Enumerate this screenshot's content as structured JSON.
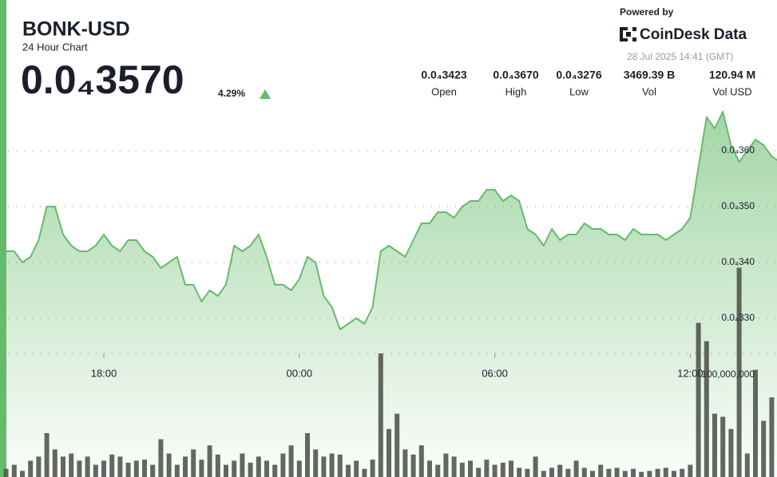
{
  "chart_data": {
    "type": "area",
    "title": "BONK-USD",
    "subtitle": "24 Hour Chart",
    "price": "0.0₄3570",
    "change": "4.29%",
    "powered_by": "Powered by",
    "brand": "CoinDesk Data",
    "timestamp": "28 Jul 2025 14:41 (GMT)",
    "stats": [
      {
        "value": "0.0₄3423",
        "label": "Open"
      },
      {
        "value": "0.0₄3670",
        "label": "High"
      },
      {
        "value": "0.0₄3276",
        "label": "Low"
      },
      {
        "value": "3469.39 B",
        "label": "Vol"
      },
      {
        "value": "120.94 M",
        "label": "Vol USD"
      }
    ],
    "categories": [
      null,
      null,
      null,
      null,
      null,
      null,
      null,
      null,
      null,
      null,
      null,
      null,
      "18:00",
      null,
      null,
      null,
      null,
      null,
      null,
      null,
      null,
      null,
      null,
      null,
      null,
      null,
      null,
      null,
      null,
      null,
      null,
      null,
      null,
      null,
      null,
      null,
      "00:00",
      null,
      null,
      null,
      null,
      null,
      null,
      null,
      null,
      null,
      null,
      null,
      null,
      null,
      null,
      null,
      null,
      null,
      null,
      null,
      null,
      null,
      null,
      null,
      "06:00",
      null,
      null,
      null,
      null,
      null,
      null,
      null,
      null,
      null,
      null,
      null,
      null,
      null,
      null,
      null,
      null,
      null,
      null,
      null,
      null,
      null,
      null,
      null,
      "12:00",
      null,
      null,
      null,
      null,
      null,
      null,
      null,
      null,
      null,
      null,
      null
    ],
    "series": [
      {
        "type": "area",
        "color": "#66bb6a",
        "values": [
          3.42e-05,
          3.42e-05,
          3.4e-05,
          3.41e-05,
          3.44e-05,
          3.5e-05,
          3.5e-05,
          3.45e-05,
          3.43e-05,
          3.42e-05,
          3.42e-05,
          3.43e-05,
          3.45e-05,
          3.43e-05,
          3.42e-05,
          3.44e-05,
          3.44e-05,
          3.42e-05,
          3.41e-05,
          3.39e-05,
          3.4e-05,
          3.41e-05,
          3.36e-05,
          3.36e-05,
          3.33e-05,
          3.35e-05,
          3.34e-05,
          3.36e-05,
          3.43e-05,
          3.42e-05,
          3.43e-05,
          3.45e-05,
          3.41e-05,
          3.36e-05,
          3.36e-05,
          3.35e-05,
          3.37e-05,
          3.41e-05,
          3.4e-05,
          3.34e-05,
          3.32e-05,
          3.28e-05,
          3.29e-05,
          3.3e-05,
          3.29e-05,
          3.32e-05,
          3.42e-05,
          3.43e-05,
          3.42e-05,
          3.41e-05,
          3.44e-05,
          3.47e-05,
          3.47e-05,
          3.49e-05,
          3.49e-05,
          3.48e-05,
          3.5e-05,
          3.51e-05,
          3.51e-05,
          3.53e-05,
          3.53e-05,
          3.51e-05,
          3.52e-05,
          3.51e-05,
          3.46e-05,
          3.45e-05,
          3.43e-05,
          3.46e-05,
          3.44e-05,
          3.45e-05,
          3.45e-05,
          3.47e-05,
          3.46e-05,
          3.46e-05,
          3.45e-05,
          3.45e-05,
          3.44e-05,
          3.46e-05,
          3.45e-05,
          3.45e-05,
          3.45e-05,
          3.44e-05,
          3.45e-05,
          3.46e-05,
          3.48e-05,
          3.57e-05,
          3.66e-05,
          3.64e-05,
          3.67e-05,
          3.61e-05,
          3.58e-05,
          3.6e-05,
          3.62e-05,
          3.61e-05,
          3.59e-05,
          3.58e-05
        ]
      },
      {
        "type": "bar",
        "axis": "y2",
        "color": "#4d524b",
        "values": [
          8000000,
          12000000,
          6000000,
          16000000,
          20000000,
          43000000,
          27000000,
          20000000,
          23000000,
          16000000,
          20000000,
          12000000,
          16000000,
          22000000,
          20000000,
          14000000,
          16000000,
          17000000,
          12000000,
          37000000,
          23000000,
          12000000,
          20000000,
          27000000,
          17000000,
          31000000,
          22000000,
          12000000,
          16000000,
          23000000,
          14000000,
          20000000,
          16000000,
          12000000,
          23000000,
          31000000,
          16000000,
          43000000,
          27000000,
          20000000,
          23000000,
          22000000,
          12000000,
          16000000,
          8000000,
          17000000,
          121000000,
          47000000,
          62000000,
          27000000,
          22000000,
          31000000,
          16000000,
          12000000,
          23000000,
          20000000,
          14000000,
          16000000,
          9000000,
          17000000,
          12000000,
          14000000,
          16000000,
          9000000,
          8000000,
          20000000,
          6000000,
          9000000,
          12000000,
          8000000,
          16000000,
          9000000,
          6000000,
          12000000,
          8000000,
          9000000,
          6000000,
          8000000,
          5000000,
          6000000,
          8000000,
          9000000,
          6000000,
          8000000,
          12000000,
          151000000,
          133000000,
          62000000,
          59000000,
          47000000,
          205000000,
          23000000,
          105000000,
          55000000,
          78000000,
          8000000
        ]
      }
    ],
    "ylim": [
      3.02e-05,
      3.7e-05
    ],
    "yticks": [
      {
        "value": 3.3e-05,
        "label": "0.0₄330"
      },
      {
        "value": 3.4e-05,
        "label": "0.0₄340"
      },
      {
        "value": 3.5e-05,
        "label": "0.0₄350"
      },
      {
        "value": 3.6e-05,
        "label": "0.0₄360"
      }
    ],
    "y2lim": [
      0,
      250000000
    ],
    "y2ticks": [
      {
        "value": 100000000,
        "label": "100,000,000"
      }
    ],
    "grid": true
  }
}
